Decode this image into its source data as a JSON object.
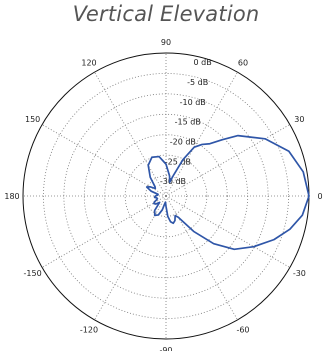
{
  "chart_data": {
    "type": "line",
    "polar": true,
    "title": "Vertical Elevation",
    "radial_unit": "dB",
    "radial_range": [
      -35,
      0
    ],
    "radial_ticks": [
      0,
      -5,
      -10,
      -15,
      -20,
      -25,
      -30
    ],
    "radial_tick_labels": [
      "0 dB",
      "-5 dB",
      "-10 dB",
      "-15 dB",
      "-20 dB",
      "-25 dB",
      "-30 dB"
    ],
    "angle_ticks": [
      0,
      30,
      60,
      90,
      120,
      150,
      180,
      -150,
      -120,
      -90,
      -60,
      -30
    ],
    "angle_tick_labels": [
      "0",
      "30",
      "60",
      "90",
      "120",
      "150",
      "180",
      "-150",
      "-120",
      "-90",
      "-60",
      "-30"
    ],
    "grid": true,
    "line_color": "#2f56a8",
    "series": [
      {
        "values_deg_db": [
          [
            0,
            0
          ],
          [
            10,
            -0.9
          ],
          [
            20,
            -3.0
          ],
          [
            30,
            -7.0
          ],
          [
            40,
            -12.0
          ],
          [
            45,
            -15.5
          ],
          [
            50,
            -18.3
          ],
          [
            55,
            -19.6
          ],
          [
            60,
            -21.2
          ],
          [
            65,
            -25.2
          ],
          [
            70,
            -29.5
          ],
          [
            75,
            -31.5
          ],
          [
            80,
            -30.0
          ],
          [
            90,
            -27.2
          ],
          [
            100,
            -25.2
          ],
          [
            110,
            -24.9
          ],
          [
            120,
            -26.3
          ],
          [
            130,
            -29.0
          ],
          [
            140,
            -31.5
          ],
          [
            145,
            -31.8
          ],
          [
            150,
            -30.5
          ],
          [
            155,
            -29.8
          ],
          [
            162,
            -31.2
          ],
          [
            168,
            -33.0
          ],
          [
            173,
            -33.0
          ],
          [
            178,
            -32.6
          ],
          [
            182,
            -32.3
          ],
          [
            187,
            -32.2
          ],
          [
            192,
            -32.7
          ],
          [
            197,
            -32.8
          ],
          [
            202,
            -32.5
          ],
          [
            207,
            -31.8
          ],
          [
            212,
            -31.5
          ],
          [
            218,
            -31.8
          ],
          [
            225,
            -32.8
          ],
          [
            232,
            -30.5
          ],
          [
            240,
            -29.5
          ],
          [
            248,
            -30.0
          ],
          [
            255,
            -31.5
          ],
          [
            260,
            -33.0
          ],
          [
            265,
            -33.5
          ],
          [
            270,
            -32.5
          ],
          [
            275,
            -30.0
          ],
          [
            280,
            -28.6
          ],
          [
            285,
            -28.1
          ],
          [
            290,
            -28.6
          ],
          [
            295,
            -29.7
          ],
          [
            300,
            -29.0
          ],
          [
            308,
            -24.0
          ],
          [
            315,
            -18.5
          ],
          [
            322,
            -13.8
          ],
          [
            330,
            -10.2
          ],
          [
            338,
            -6.5
          ],
          [
            345,
            -3.6
          ],
          [
            352,
            -1.3
          ],
          [
            360,
            0
          ]
        ]
      }
    ]
  }
}
